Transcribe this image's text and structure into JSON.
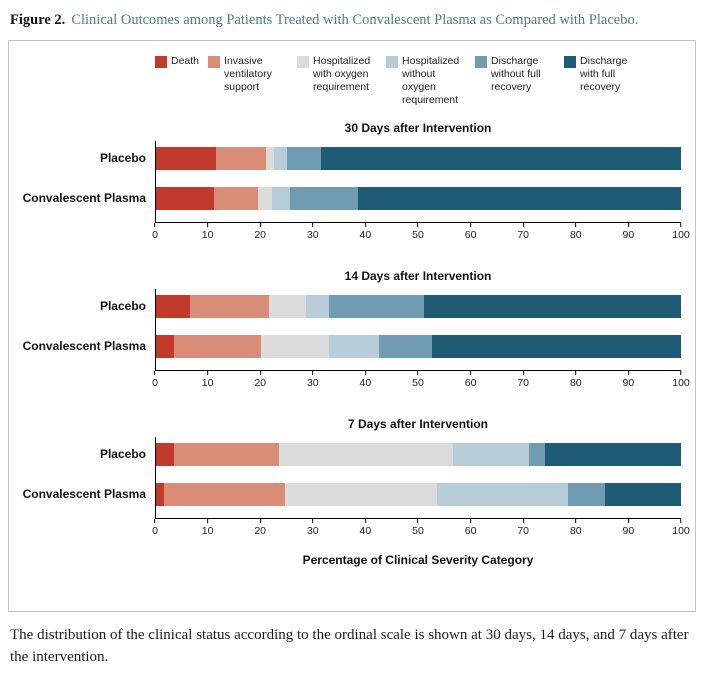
{
  "figure": {
    "label": "Figure 2.",
    "title": "Clinical Outcomes among Patients Treated with Convalescent Plasma as Compared with Placebo."
  },
  "caption": "The distribution of the clinical status according to the ordinal scale is shown at 30 days, 14 days, and 7 days after the intervention.",
  "chart_data": {
    "type": "bar",
    "orientation": "horizontal",
    "stacked": true,
    "xlabel": "Percentage of Clinical Severity Category",
    "xlim": [
      0,
      100
    ],
    "x_ticks": [
      0,
      10,
      20,
      30,
      40,
      50,
      60,
      70,
      80,
      90,
      100
    ],
    "legend_position": "top",
    "grid": false,
    "categories": [
      {
        "name": "Death",
        "color": "#c13a2b"
      },
      {
        "name": "Invasive ventilatory support",
        "color": "#d98d76"
      },
      {
        "name": "Hospitalized with oxygen requirement",
        "color": "#dbdbdb"
      },
      {
        "name": "Hospitalized without oxygen requirement",
        "color": "#b7cdd9"
      },
      {
        "name": "Discharge without full recovery",
        "color": "#6f9cb1"
      },
      {
        "name": "Discharge with full recovery",
        "color": "#1f5b74"
      }
    ],
    "panels": [
      {
        "title": "30 Days after Intervention",
        "rows": [
          {
            "label": "Placebo",
            "values": [
              11.4,
              9.6,
              1.5,
              2.5,
              6.5,
              68.5
            ]
          },
          {
            "label": "Convalescent Plasma",
            "values": [
              11.0,
              8.5,
              2.5,
              3.5,
              13.0,
              61.5
            ]
          }
        ]
      },
      {
        "title": "14 Days after Intervention",
        "rows": [
          {
            "label": "Placebo",
            "values": [
              6.5,
              15.0,
              7.0,
              4.5,
              18.0,
              49.0
            ]
          },
          {
            "label": "Convalescent Plasma",
            "values": [
              3.5,
              16.5,
              13.0,
              9.5,
              10.0,
              47.5
            ]
          }
        ]
      },
      {
        "title": "7 Days after Intervention",
        "rows": [
          {
            "label": "Placebo",
            "values": [
              3.5,
              20.0,
              33.0,
              14.5,
              3.0,
              26.0
            ]
          },
          {
            "label": "Convalescent Plasma",
            "values": [
              1.5,
              23.0,
              29.0,
              25.0,
              7.0,
              14.5
            ]
          }
        ]
      }
    ]
  }
}
